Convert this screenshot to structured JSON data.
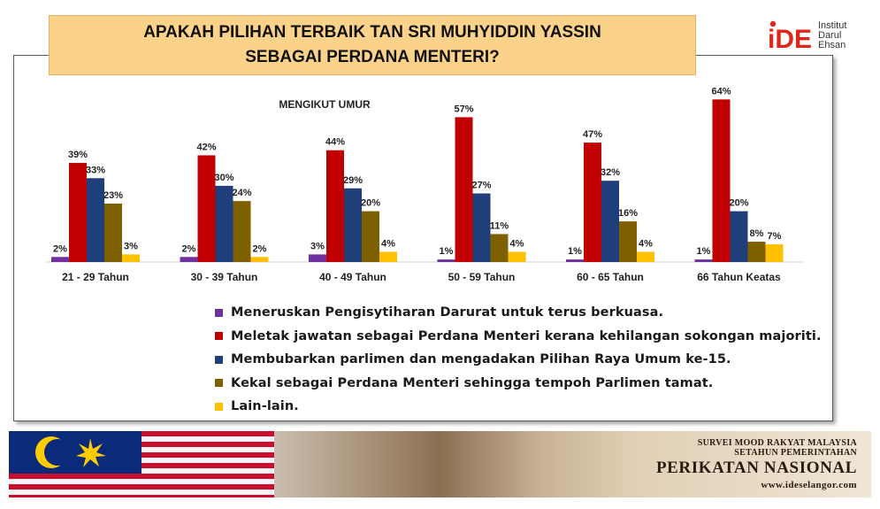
{
  "header": {
    "title_line1": "APAKAH PILIHAN TERBAIK TAN SRI MUHYIDDIN YASSIN",
    "title_line2": "SEBAGAI PERDANA MENTERI?"
  },
  "logo": {
    "mark": "iDE",
    "line1": "Institut",
    "line2": "Darul",
    "line3": "Ehsan"
  },
  "chart_data": {
    "type": "bar",
    "title": "MENGIKUT UMUR",
    "categories": [
      "21 - 29 Tahun",
      "30 - 39 Tahun",
      "40 - 49 Tahun",
      "50 - 59 Tahun",
      "60 - 65 Tahun",
      "66 Tahun Keatas"
    ],
    "unit": "%",
    "ylim": [
      0,
      70
    ],
    "grid": false,
    "legend_position": "bottom",
    "series": [
      {
        "name": "Meneruskan Pengisytiharan Darurat untuk terus berkuasa.",
        "color": "#7030a0",
        "values": [
          2,
          2,
          3,
          1,
          1,
          1
        ]
      },
      {
        "name": "Meletak jawatan sebagai Perdana Menteri kerana kehilangan sokongan majoriti.",
        "color": "#c00000",
        "values": [
          39,
          42,
          44,
          57,
          47,
          64
        ]
      },
      {
        "name": "Membubarkan parlimen dan mengadakan Pilihan Raya Umum ke-15.",
        "color": "#1f3f7a",
        "values": [
          33,
          30,
          29,
          27,
          32,
          20
        ]
      },
      {
        "name": "Kekal sebagai Perdana Menteri sehingga tempoh Parlimen tamat.",
        "color": "#7f6000",
        "values": [
          23,
          24,
          20,
          11,
          16,
          8
        ]
      },
      {
        "name": "Lain-lain.",
        "color": "#ffc000",
        "values": [
          3,
          2,
          4,
          4,
          4,
          7
        ]
      }
    ]
  },
  "banner": {
    "line1": "SURVEI MOOD RAKYAT MALAYSIA",
    "line2": "SETAHUN PEMERINTAHAN",
    "line3": "PERIKATAN NASIONAL",
    "line4": "www.ideselangor.com"
  }
}
